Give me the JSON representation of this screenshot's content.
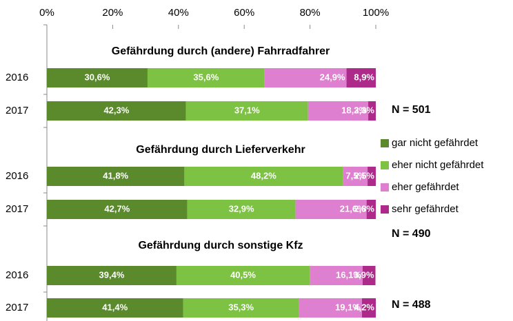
{
  "chart_data": {
    "type": "bar",
    "orientation": "horizontal",
    "stacked": true,
    "categories": [
      "2016",
      "2017",
      "2016",
      "2017",
      "2016",
      "2017"
    ],
    "group_titles": [
      "Gefährdung durch (andere) Fahrradfahrer",
      "Gefährdung durch Lieferverkehr",
      "Gefährdung durch sonstige Kfz"
    ],
    "n_labels": [
      "N = 501",
      "N = 490",
      "N = 488"
    ],
    "series": [
      {
        "name": "gar nicht gefährdet",
        "color": "#5b8a2d",
        "values": [
          30.6,
          42.3,
          41.8,
          42.7,
          39.4,
          41.4
        ],
        "value_labels": [
          "30,6%",
          "42,3%",
          "41,8%",
          "42,7%",
          "39,4%",
          "41,4%"
        ]
      },
      {
        "name": "eher nicht gefährdet",
        "color": "#7dc242",
        "values": [
          35.6,
          37.1,
          48.2,
          32.9,
          40.5,
          35.3
        ],
        "value_labels": [
          "35,6%",
          "37,1%",
          "48,2%",
          "32,9%",
          "40,5%",
          "35,3%"
        ]
      },
      {
        "name": "eher gefährdet",
        "color": "#df7fcf",
        "values": [
          24.9,
          18.3,
          7.5,
          21.6,
          16.1,
          19.1
        ],
        "value_labels": [
          "24,9%",
          "18,3%",
          "7,5%",
          "21,6%",
          "16,1%",
          "19,1%"
        ]
      },
      {
        "name": "sehr gefährdet",
        "color": "#ad2a8a",
        "values": [
          8.9,
          2.3,
          2.5,
          2.8,
          3.9,
          4.2
        ],
        "value_labels": [
          "8,9%",
          "2,3%",
          "2,5%",
          "2,8%",
          "3,9%",
          "4,2%"
        ]
      }
    ],
    "xlim": [
      0,
      100
    ],
    "xticks": [
      {
        "value": 0,
        "label": "0%"
      },
      {
        "value": 20,
        "label": "20%"
      },
      {
        "value": 40,
        "label": "40%"
      },
      {
        "value": 60,
        "label": "60%"
      },
      {
        "value": 80,
        "label": "80%"
      },
      {
        "value": 100,
        "label": "100%"
      }
    ],
    "legend": "right"
  }
}
